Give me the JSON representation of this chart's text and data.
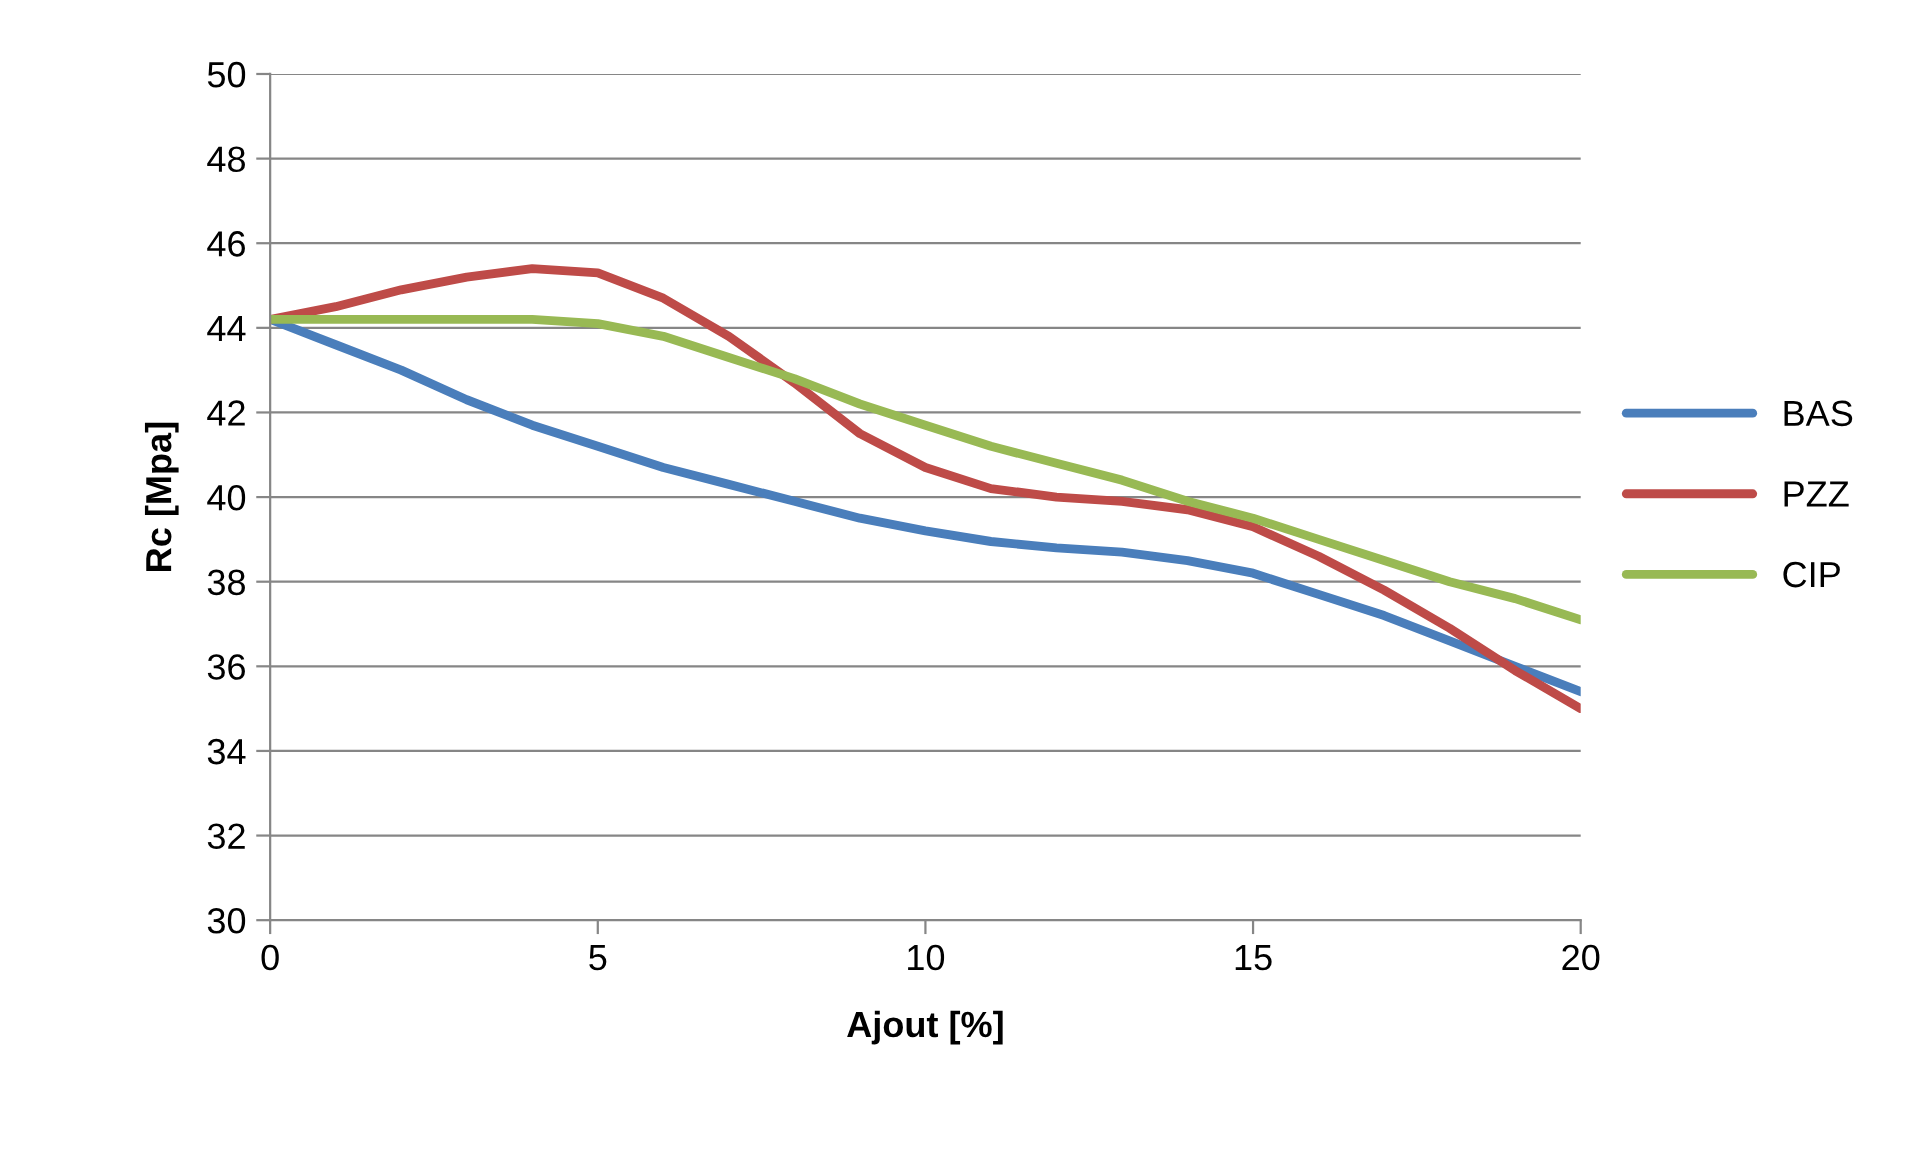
{
  "chart_data": {
    "type": "line",
    "xlabel": "Ajout [%]",
    "ylabel": "Rc [Mpa]",
    "x": [
      0,
      1,
      2,
      3,
      4,
      5,
      6,
      7,
      8,
      9,
      10,
      11,
      12,
      13,
      14,
      15,
      16,
      17,
      18,
      19,
      20
    ],
    "series": [
      {
        "name": "BAS",
        "color": "#4a7ebb",
        "values": [
          44.2,
          43.6,
          43.0,
          42.3,
          41.7,
          41.2,
          40.7,
          40.3,
          39.9,
          39.5,
          39.2,
          38.95,
          38.8,
          38.7,
          38.5,
          38.2,
          37.7,
          37.2,
          36.6,
          36.0,
          35.4
        ]
      },
      {
        "name": "PZZ",
        "color": "#be4b48",
        "values": [
          44.2,
          44.5,
          44.9,
          45.2,
          45.4,
          45.3,
          44.7,
          43.8,
          42.7,
          41.5,
          40.7,
          40.2,
          40.0,
          39.9,
          39.7,
          39.3,
          38.6,
          37.8,
          36.9,
          35.9,
          35.0
        ]
      },
      {
        "name": "CIP",
        "color": "#98b954",
        "values": [
          44.2,
          44.2,
          44.2,
          44.2,
          44.2,
          44.1,
          43.8,
          43.3,
          42.8,
          42.2,
          41.7,
          41.2,
          40.8,
          40.4,
          39.9,
          39.5,
          39.0,
          38.5,
          38.0,
          37.6,
          37.1
        ]
      }
    ],
    "xlim": [
      0,
      20
    ],
    "xticks": [
      0,
      5,
      10,
      15,
      20
    ],
    "ylim": [
      30,
      50
    ],
    "yticks": [
      30,
      32,
      34,
      36,
      38,
      40,
      42,
      44,
      46,
      48,
      50
    ],
    "grid": "y",
    "legend": "right",
    "marker": "none",
    "line_style": "solid"
  }
}
